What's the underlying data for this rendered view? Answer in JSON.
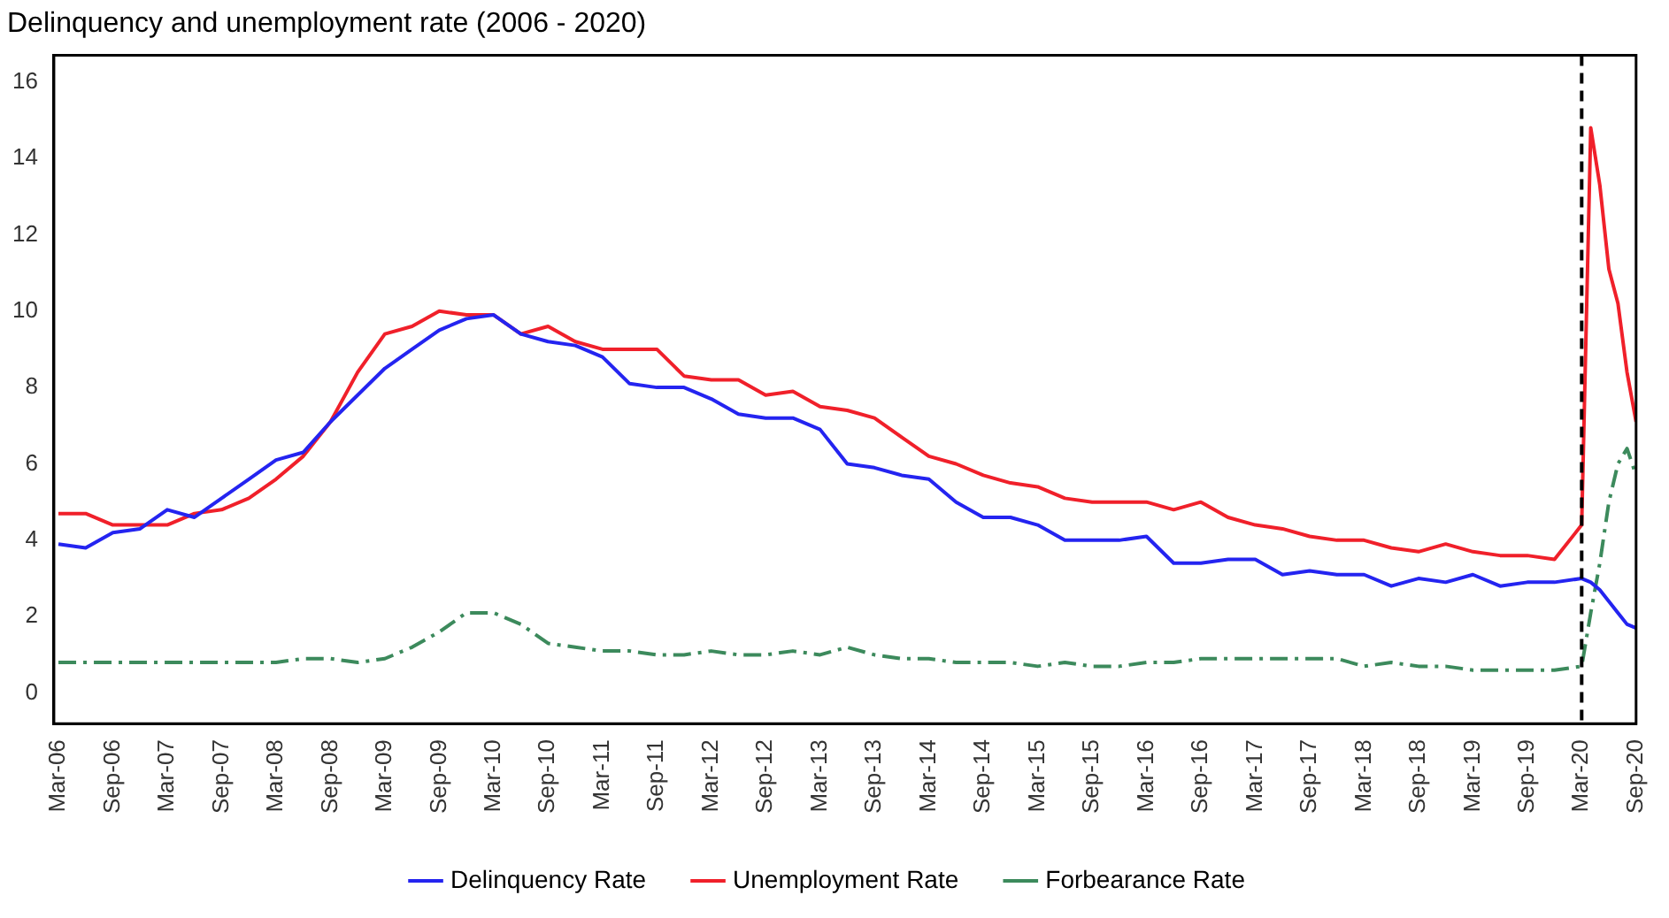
{
  "chart_data": {
    "type": "line",
    "title": "Delinquency and unemployment rate (2006 - 2020)",
    "x": [
      "2006-03",
      "2006-06",
      "2006-09",
      "2006-12",
      "2007-03",
      "2007-06",
      "2007-09",
      "2007-12",
      "2008-03",
      "2008-06",
      "2008-09",
      "2008-12",
      "2009-03",
      "2009-06",
      "2009-09",
      "2009-12",
      "2010-03",
      "2010-06",
      "2010-09",
      "2010-12",
      "2011-03",
      "2011-06",
      "2011-09",
      "2011-12",
      "2012-03",
      "2012-06",
      "2012-09",
      "2012-12",
      "2013-03",
      "2013-06",
      "2013-09",
      "2013-12",
      "2014-03",
      "2014-06",
      "2014-09",
      "2014-12",
      "2015-03",
      "2015-06",
      "2015-09",
      "2015-12",
      "2016-03",
      "2016-06",
      "2016-09",
      "2016-12",
      "2017-03",
      "2017-06",
      "2017-09",
      "2017-12",
      "2018-03",
      "2018-06",
      "2018-09",
      "2018-12",
      "2019-03",
      "2019-06",
      "2019-09",
      "2019-12",
      "2020-03",
      "2020-04",
      "2020-05",
      "2020-06",
      "2020-07",
      "2020-08",
      "2020-09"
    ],
    "series": [
      {
        "name": "Delinquency Rate",
        "color": "#2424f0",
        "line_style": "solid",
        "values": [
          3.9,
          3.8,
          4.2,
          4.3,
          4.8,
          4.6,
          5.1,
          5.6,
          6.1,
          6.3,
          7.1,
          7.8,
          8.5,
          9.0,
          9.5,
          9.8,
          9.9,
          9.4,
          9.2,
          9.1,
          8.8,
          8.1,
          8.0,
          8.0,
          7.7,
          7.3,
          7.2,
          7.2,
          6.9,
          6.0,
          5.9,
          5.7,
          5.6,
          5.0,
          4.6,
          4.6,
          4.4,
          4.0,
          4.0,
          4.0,
          4.1,
          3.4,
          3.4,
          3.5,
          3.5,
          3.1,
          3.2,
          3.1,
          3.1,
          2.8,
          3.0,
          2.9,
          3.1,
          2.8,
          2.9,
          2.9,
          3.0,
          2.9,
          2.7,
          2.4,
          2.1,
          1.8,
          1.7
        ]
      },
      {
        "name": "Unemployment Rate",
        "color": "#f0202a",
        "line_style": "solid",
        "values": [
          4.7,
          4.7,
          4.4,
          4.4,
          4.4,
          4.7,
          4.8,
          5.1,
          5.6,
          6.2,
          7.1,
          8.4,
          9.4,
          9.6,
          10.0,
          9.9,
          9.9,
          9.4,
          9.6,
          9.2,
          9.0,
          9.0,
          9.0,
          8.3,
          8.2,
          8.2,
          7.8,
          7.9,
          7.5,
          7.4,
          7.2,
          6.7,
          6.2,
          6.0,
          5.7,
          5.5,
          5.4,
          5.1,
          5.0,
          5.0,
          5.0,
          4.8,
          5.0,
          4.6,
          4.4,
          4.3,
          4.1,
          4.0,
          4.0,
          3.8,
          3.7,
          3.9,
          3.7,
          3.6,
          3.6,
          3.5,
          4.4,
          14.8,
          13.3,
          11.1,
          10.2,
          8.4,
          7.1
        ]
      },
      {
        "name": "Forbearance Rate",
        "color": "#3c8a5c",
        "line_style": "dashed",
        "values": [
          0.8,
          0.8,
          0.8,
          0.8,
          0.8,
          0.8,
          0.8,
          0.8,
          0.8,
          0.9,
          0.9,
          0.8,
          0.9,
          1.2,
          1.6,
          2.1,
          2.1,
          1.8,
          1.3,
          1.2,
          1.1,
          1.1,
          1.0,
          1.0,
          1.1,
          1.0,
          1.0,
          1.1,
          1.0,
          1.2,
          1.0,
          0.9,
          0.9,
          0.8,
          0.8,
          0.8,
          0.7,
          0.8,
          0.7,
          0.7,
          0.8,
          0.8,
          0.9,
          0.9,
          0.9,
          0.9,
          0.9,
          0.9,
          0.7,
          0.8,
          0.7,
          0.7,
          0.6,
          0.6,
          0.6,
          0.6,
          0.7,
          2.1,
          3.4,
          5.0,
          6.0,
          6.4,
          5.7
        ]
      }
    ],
    "xlim": [
      "2006-03",
      "2020-09"
    ],
    "xticks": [
      {
        "value": "2006-03",
        "label": "Mar-06"
      },
      {
        "value": "2006-09",
        "label": "Sep-06"
      },
      {
        "value": "2007-03",
        "label": "Mar-07"
      },
      {
        "value": "2007-09",
        "label": "Sep-07"
      },
      {
        "value": "2008-03",
        "label": "Mar-08"
      },
      {
        "value": "2008-09",
        "label": "Sep-08"
      },
      {
        "value": "2009-03",
        "label": "Mar-09"
      },
      {
        "value": "2009-09",
        "label": "Sep-09"
      },
      {
        "value": "2010-03",
        "label": "Mar-10"
      },
      {
        "value": "2010-09",
        "label": "Sep-10"
      },
      {
        "value": "2011-03",
        "label": "Mar-11"
      },
      {
        "value": "2011-09",
        "label": "Sep-11"
      },
      {
        "value": "2012-03",
        "label": "Mar-12"
      },
      {
        "value": "2012-09",
        "label": "Sep-12"
      },
      {
        "value": "2013-03",
        "label": "Mar-13"
      },
      {
        "value": "2013-09",
        "label": "Sep-13"
      },
      {
        "value": "2014-03",
        "label": "Mar-14"
      },
      {
        "value": "2014-09",
        "label": "Sep-14"
      },
      {
        "value": "2015-03",
        "label": "Mar-15"
      },
      {
        "value": "2015-09",
        "label": "Sep-15"
      },
      {
        "value": "2016-03",
        "label": "Mar-16"
      },
      {
        "value": "2016-09",
        "label": "Sep-16"
      },
      {
        "value": "2017-03",
        "label": "Mar-17"
      },
      {
        "value": "2017-09",
        "label": "Sep-17"
      },
      {
        "value": "2018-03",
        "label": "Mar-18"
      },
      {
        "value": "2018-09",
        "label": "Sep-18"
      },
      {
        "value": "2019-03",
        "label": "Mar-19"
      },
      {
        "value": "2019-09",
        "label": "Sep-19"
      },
      {
        "value": "2020-03",
        "label": "Mar-20"
      },
      {
        "value": "2020-09",
        "label": "Sep-20"
      }
    ],
    "ylim": [
      -0.8,
      16.7
    ],
    "yticks": [
      0,
      2,
      4,
      6,
      8,
      10,
      12,
      14,
      16
    ],
    "ref_lines": [
      {
        "axis": "x",
        "value": "2020-03",
        "color": "#000000",
        "line_style": "dashed"
      }
    ],
    "grid": false,
    "legend": "bottom",
    "marker": "none"
  }
}
